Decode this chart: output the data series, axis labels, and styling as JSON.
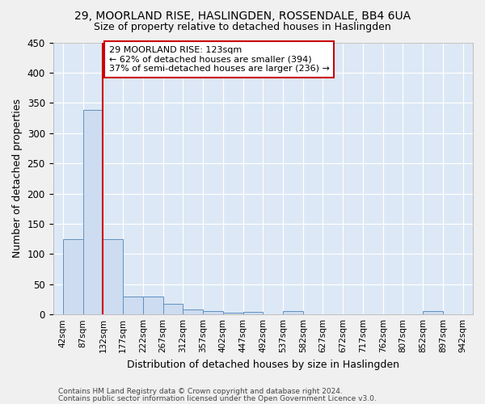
{
  "title1": "29, MOORLAND RISE, HASLINGDEN, ROSSENDALE, BB4 6UA",
  "title2": "Size of property relative to detached houses in Haslingden",
  "xlabel": "Distribution of detached houses by size in Haslingden",
  "ylabel": "Number of detached properties",
  "bin_edges": [
    42,
    87,
    132,
    177,
    222,
    267,
    312,
    357,
    402,
    447,
    492,
    537,
    582,
    627,
    672,
    717,
    762,
    807,
    852,
    897,
    942
  ],
  "bin_labels": [
    "42sqm",
    "87sqm",
    "132sqm",
    "177sqm",
    "222sqm",
    "267sqm",
    "312sqm",
    "357sqm",
    "402sqm",
    "447sqm",
    "492sqm",
    "537sqm",
    "582sqm",
    "627sqm",
    "672sqm",
    "717sqm",
    "762sqm",
    "807sqm",
    "852sqm",
    "897sqm",
    "942sqm"
  ],
  "bar_heights": [
    124,
    338,
    124,
    30,
    29,
    17,
    8,
    6,
    3,
    4,
    0,
    5,
    0,
    0,
    0,
    0,
    0,
    0,
    5,
    0
  ],
  "bar_color": "#cddcf0",
  "bar_edge_color": "#6090c0",
  "ref_line_x": 132,
  "ref_line_color": "#cc0000",
  "ylim": [
    0,
    450
  ],
  "yticks": [
    0,
    50,
    100,
    150,
    200,
    250,
    300,
    350,
    400,
    450
  ],
  "annotation_title": "29 MOORLAND RISE: 123sqm",
  "annotation_line1": "← 62% of detached houses are smaller (394)",
  "annotation_line2": "37% of semi-detached houses are larger (236) →",
  "annotation_box_facecolor": "#ffffff",
  "annotation_box_edgecolor": "#cc0000",
  "bg_color": "#dce8f5",
  "fig_facecolor": "#f0f0f0",
  "footer1": "Contains HM Land Registry data © Crown copyright and database right 2024.",
  "footer2": "Contains public sector information licensed under the Open Government Licence v3.0."
}
